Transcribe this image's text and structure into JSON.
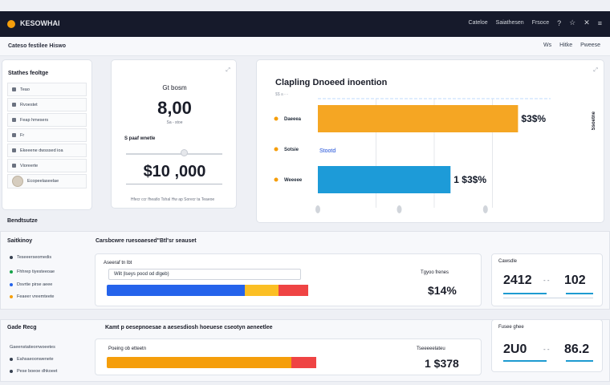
{
  "app": {
    "title": "KESOWHAI"
  },
  "topnav": {
    "links": [
      "Cateloe",
      "Saiathesen",
      "Frsoce"
    ]
  },
  "subbar": {
    "breadcrumb": "Cateso festilee Hiswo",
    "links": [
      "Ws",
      "Hitke",
      "Pweese"
    ]
  },
  "sidebar": {
    "heading": "Stathes feoltge",
    "items": [
      "Teao",
      "Rvoestet",
      "Feap hmesers",
      "Fr",
      "Ekeeene dwsssed ioa",
      "Vioreerte",
      "Ecopeelaseelae"
    ]
  },
  "kpi": {
    "label": "Gt bosm",
    "value": "8,00",
    "sub": "Sa  -  stoe",
    "mini_label": "S paaf wnetle",
    "value2": "$10 ,000",
    "footer": "Hfecr ccr fheatlo Tshal Hw ap Sorecr ta  Teaeoe",
    "slider_position": 0.6
  },
  "chart_card": {
    "title": "Clapling Dnoeed inoention",
    "subtitle": "$$   a   -   -",
    "right_label": "Ssoetne"
  },
  "section1": {
    "label": "Bendtsutze",
    "row_label": "Saitkinoy",
    "heading": "Carsbcwre ruesoaesed\"Btl'sr seauset",
    "list": [
      "Teseeerseomedis",
      "Fhhrep tiyesteeoae",
      "Dsvrtie pirse aeee",
      "Feaeer vreemteete"
    ],
    "prog_label": "Aseeraf tn lbt",
    "field_value": "Wilt  |lseys pood od dlgeb)",
    "right_label": "Tgyoo frenes",
    "value": "$14%",
    "segments": [
      {
        "value": 0.65,
        "color": "#2563eb"
      },
      {
        "value": 0.16,
        "color": "#fbbf24"
      },
      {
        "value": 0.14,
        "color": "#ef4444"
      }
    ],
    "stat_head": "Cawsdle",
    "stat_a": "2412",
    "stat_mid": "- -",
    "stat_b": "102"
  },
  "section2": {
    "label": "Gade Recg",
    "list": [
      "Gaeenstatieorrwoeetes",
      "Eahsaeoonwenete",
      "Pese boeoe dhkoeet"
    ],
    "heading": "Kamt p oesepnoesae a aesesdiosh hoeuese cseotyn aeneetlee",
    "prog_label": "Poeing ob etteetn",
    "right_label": "Tseeeeelateu ",
    "value": "1 $378",
    "segments": [
      {
        "value": 0.87,
        "color": "#f59e0b"
      },
      {
        "value": 0.12,
        "color": "#ef4444"
      }
    ],
    "stat_head": "Fusee ghee",
    "stat_a": "2U0",
    "stat_mid": "- -",
    "stat_b": "86.2"
  },
  "chart_data": {
    "type": "bar",
    "orientation": "horizontal",
    "categories": [
      "Daeeea",
      "Sotsie",
      "Weeeee"
    ],
    "values": [
      0.86,
      0.0,
      0.57
    ],
    "value_labels": [
      "$3$%",
      "Stootd",
      "1 $3$%"
    ],
    "colors": [
      "#f5a623",
      "#1d4ed8",
      "#1d9bd8"
    ],
    "grid": true,
    "xlim": [
      0,
      1
    ]
  }
}
